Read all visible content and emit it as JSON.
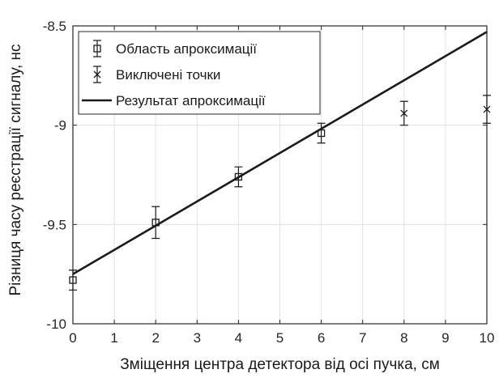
{
  "chart_data": {
    "type": "scatter",
    "xlabel": "Зміщення центра детектора від осі пучка, см",
    "ylabel": "Різниця часу реєстрації сигналу, нс",
    "xlim": [
      0,
      10
    ],
    "ylim": [
      -10,
      -8.5
    ],
    "xticks": [
      0,
      1,
      2,
      3,
      4,
      5,
      6,
      7,
      8,
      9,
      10
    ],
    "xtick_labels": [
      "0",
      "1",
      "2",
      "3",
      "4",
      "5",
      "6",
      "7",
      "8",
      "9",
      "10"
    ],
    "yticks": [
      -10,
      -9.5,
      -9,
      -8.5
    ],
    "ytick_labels": [
      "-10",
      "-9.5",
      "-9",
      "-8.5"
    ],
    "grid": true,
    "legend_position": "top-left",
    "series": [
      {
        "name": "Область апроксимації",
        "marker": "square",
        "points": [
          {
            "x": 0,
            "y": -9.78,
            "err": 0.05
          },
          {
            "x": 2,
            "y": -9.49,
            "err": 0.08
          },
          {
            "x": 4,
            "y": -9.26,
            "err": 0.05
          },
          {
            "x": 6,
            "y": -9.04,
            "err": 0.05
          }
        ]
      },
      {
        "name": "Виключені точки",
        "marker": "x",
        "points": [
          {
            "x": 8,
            "y": -8.94,
            "err": 0.06
          },
          {
            "x": 10,
            "y": -8.92,
            "err": 0.07
          }
        ]
      },
      {
        "name": "Результат апроксимації",
        "style": "line",
        "points": [
          {
            "x": 0,
            "y": -9.75
          },
          {
            "x": 10,
            "y": -8.53
          }
        ]
      }
    ],
    "colors": {
      "data": "#1a1a1a",
      "grid": "#e3e3e3",
      "axis": "#262626"
    }
  }
}
